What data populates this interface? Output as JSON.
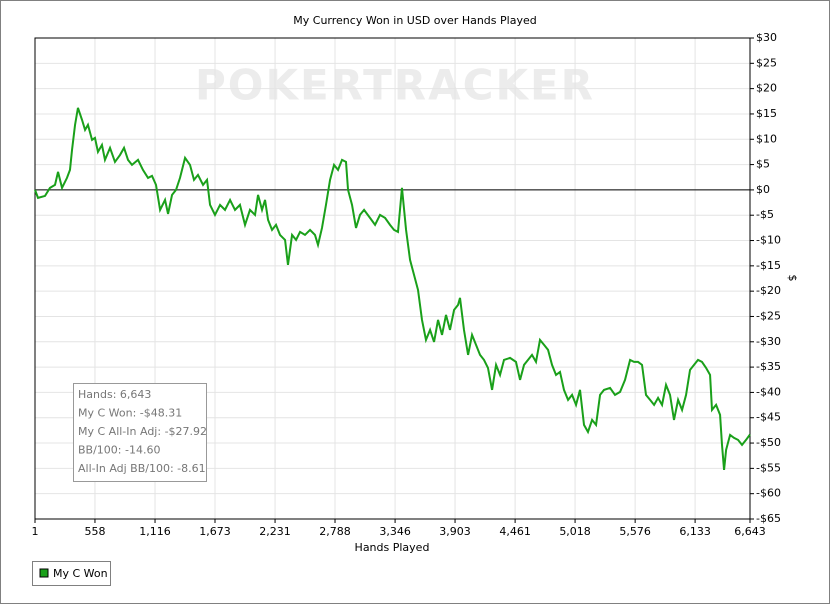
{
  "chart_data": {
    "type": "line",
    "title": "My Currency Won in USD over Hands Played",
    "watermark": "POKERTRACKER",
    "x_label": "Hands Played",
    "y_label": "$",
    "xlim": [
      1,
      6643
    ],
    "xticks": [
      1,
      558,
      {
        "value": 1116,
        "label": "1,116"
      },
      {
        "value": 1673,
        "label": "1,673"
      },
      {
        "value": 2231,
        "label": "2,231"
      },
      {
        "value": 2788,
        "label": "2,788"
      },
      {
        "value": 3346,
        "label": "3,346"
      },
      {
        "value": 3903,
        "label": "3,903"
      },
      {
        "value": 4461,
        "label": "4,461"
      },
      {
        "value": 5018,
        "label": "5,018"
      },
      {
        "value": 5576,
        "label": "5,576"
      },
      {
        "value": 6133,
        "label": "6,133"
      },
      {
        "value": 6643,
        "label": "6,643"
      }
    ],
    "ylim": [
      -65,
      30
    ],
    "yticks": [
      {
        "value": 30,
        "label": "$30"
      },
      {
        "value": 25,
        "label": "$25"
      },
      {
        "value": 20,
        "label": "$20"
      },
      {
        "value": 15,
        "label": "$15"
      },
      {
        "value": 10,
        "label": "$10"
      },
      {
        "value": 5,
        "label": "$5"
      },
      {
        "value": 0,
        "label": "$0"
      },
      {
        "value": -5,
        "label": "-$5"
      },
      {
        "value": -10,
        "label": "-$10"
      },
      {
        "value": -15,
        "label": "-$15"
      },
      {
        "value": -20,
        "label": "-$20"
      },
      {
        "value": -25,
        "label": "-$25"
      },
      {
        "value": -30,
        "label": "-$30"
      },
      {
        "value": -35,
        "label": "-$35"
      },
      {
        "value": -40,
        "label": "-$40"
      },
      {
        "value": -45,
        "label": "-$45"
      },
      {
        "value": -50,
        "label": "-$50"
      },
      {
        "value": -55,
        "label": "-$55"
      },
      {
        "value": -60,
        "label": "-$60"
      },
      {
        "value": -65,
        "label": "-$65"
      }
    ],
    "grid": true,
    "legend": "bottom-left",
    "annotations": [
      "Hands: 6,643",
      "My C Won: -$48.31",
      "My C All-In Adj: -$27.92",
      "BB/100: -14.60",
      "All-In Adj BB/100: -8.61"
    ],
    "x": [
      1,
      29,
      94,
      140,
      187,
      215,
      252,
      298,
      326,
      345,
      373,
      400,
      438,
      466,
      493,
      531,
      558,
      586,
      623,
      651,
      698,
      744,
      791,
      828,
      865,
      902,
      958,
      1004,
      1051,
      1088,
      1125,
      1163,
      1209,
      1237,
      1274,
      1311,
      1348,
      1395,
      1441,
      1478,
      1515,
      1562,
      1599,
      1627,
      1673,
      1720,
      1766,
      1813,
      1859,
      1905,
      1952,
      1998,
      2045,
      2073,
      2110,
      2138,
      2166,
      2203,
      2240,
      2277,
      2324,
      2351,
      2389,
      2426,
      2463,
      2509,
      2556,
      2602,
      2630,
      2667,
      2704,
      2742,
      2779,
      2816,
      2853,
      2890,
      2909,
      2946,
      2983,
      3020,
      3058,
      3113,
      3160,
      3206,
      3253,
      3299,
      3336,
      3373,
      3410,
      3448,
      3485,
      3522,
      3559,
      3596,
      3633,
      3671,
      3708,
      3745,
      3782,
      3819,
      3856,
      3894,
      3931,
      3949,
      3986,
      4024,
      4061,
      4098,
      4135,
      4172,
      4209,
      4247,
      4284,
      4321,
      4358,
      4414,
      4469,
      4507,
      4544,
      4581,
      4618,
      4655,
      4692,
      4730,
      4767,
      4804,
      4841,
      4878,
      4915,
      4953,
      4990,
      5027,
      5064,
      5101,
      5138,
      5176,
      5213,
      5250,
      5287,
      5343,
      5389,
      5436,
      5482,
      5529,
      5566,
      5603,
      5640,
      5677,
      5715,
      5752,
      5789,
      5826,
      5863,
      5900,
      5937,
      5975,
      6012,
      6049,
      6086,
      6123,
      6160,
      6197,
      6235,
      6272,
      6290,
      6328,
      6365,
      6383,
      6402,
      6421,
      6458,
      6495,
      6532,
      6569,
      6606,
      6643
    ],
    "series": [
      {
        "name": "My C Won",
        "color": "#1aa01a",
        "values": [
          0,
          -1.58,
          -1.19,
          0.4,
          0.99,
          3.56,
          0.4,
          2.37,
          3.95,
          7.9,
          12.84,
          16.2,
          13.83,
          11.85,
          12.84,
          9.88,
          10.27,
          7.51,
          8.89,
          5.93,
          8.3,
          5.53,
          6.91,
          8.3,
          5.93,
          4.94,
          5.93,
          3.95,
          2.37,
          2.77,
          0.99,
          -3.95,
          -1.98,
          -4.74,
          -0.99,
          0,
          2.37,
          6.32,
          4.94,
          1.98,
          2.96,
          0.99,
          1.98,
          -2.96,
          -4.94,
          -2.96,
          -3.95,
          -1.98,
          -3.95,
          -2.96,
          -6.91,
          -3.95,
          -4.94,
          -0.99,
          -3.95,
          -1.98,
          -5.93,
          -7.9,
          -6.91,
          -8.89,
          -9.88,
          -14.81,
          -8.89,
          -9.88,
          -8.3,
          -8.89,
          -7.9,
          -8.89,
          -10.86,
          -7.51,
          -2.96,
          1.98,
          4.94,
          3.95,
          5.93,
          5.53,
          0,
          -2.96,
          -7.51,
          -4.94,
          -3.95,
          -5.53,
          -6.91,
          -4.94,
          -5.53,
          -6.91,
          -7.9,
          -8.3,
          0.4,
          -7.9,
          -13.83,
          -16.79,
          -19.75,
          -25.68,
          -29.63,
          -27.65,
          -30.02,
          -25.68,
          -28.64,
          -24.69,
          -27.65,
          -23.7,
          -22.71,
          -21.33,
          -27.65,
          -32.59,
          -28.64,
          -30.61,
          -32.59,
          -33.58,
          -35.16,
          -39.5,
          -34.56,
          -36.54,
          -33.58,
          -33.18,
          -33.97,
          -37.53,
          -34.56,
          -33.58,
          -32.59,
          -33.97,
          -29.63,
          -30.61,
          -31.6,
          -34.56,
          -36.54,
          -35.95,
          -39.5,
          -41.48,
          -40.49,
          -42.46,
          -39.5,
          -46.41,
          -47.8,
          -45.43,
          -46.41,
          -40.49,
          -39.5,
          -39.11,
          -40.49,
          -39.9,
          -37.53,
          -33.58,
          -33.97,
          -33.97,
          -34.56,
          -40.49,
          -41.48,
          -42.46,
          -41.08,
          -42.46,
          -38.51,
          -40.49,
          -45.43,
          -41.48,
          -43.45,
          -40.49,
          -35.55,
          -34.56,
          -33.58,
          -33.97,
          -35.16,
          -36.54,
          -43.45,
          -42.46,
          -44.44,
          -50.36,
          -55.3,
          -51.35,
          -48.39,
          -48.98,
          -49.38,
          -50.36,
          -49.38,
          -48.31
        ]
      }
    ]
  }
}
